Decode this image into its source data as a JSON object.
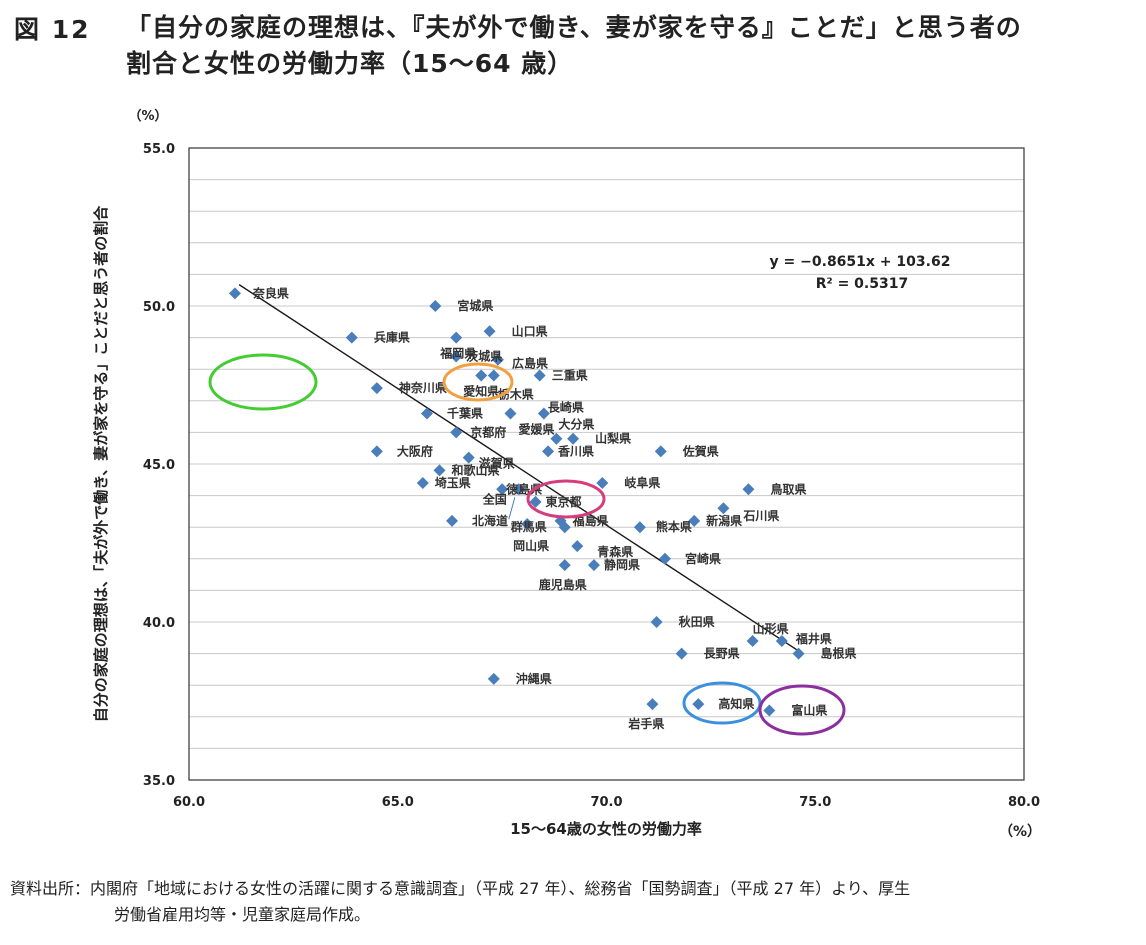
{
  "figure": {
    "number": "図 12",
    "title_line1": "「自分の家庭の理想は、『夫が外で働き、妻が家を守る』ことだ」と思う者の",
    "title_line2": "割合と女性の労働力率（15～64 歳）"
  },
  "source": {
    "label": "資料出所：",
    "line1": "内閣府「地域における女性の活躍に関する意識調査」（平成 27 年）、総務省「国勢調査」（平成 27 年）より、厚生",
    "line2": "労働省雇用均等・児童家庭局作成。"
  },
  "chart_data": {
    "type": "scatter",
    "xlabel": "15～64歳の女性の労働力率",
    "ylabel": "自分の家庭の理想は、「夫が外で働き、妻が家を守る」ことだと思う者の割合",
    "x_unit": "（%）",
    "y_unit": "（%）",
    "xlim": [
      60,
      80
    ],
    "ylim": [
      35,
      55
    ],
    "xticks": [
      "60.0",
      "65.0",
      "70.0",
      "75.0",
      "80.0"
    ],
    "yticks": [
      "35.0",
      "40.0",
      "45.0",
      "50.0",
      "55.0"
    ],
    "grid": "horizontal",
    "marker_color": "#4a7ebb",
    "trendline": {
      "equation": "y = −0.8651x + 103.62",
      "r2": "R² = 0.5317",
      "slope": -0.8651,
      "intercept": 103.62,
      "x_range": [
        61.2,
        74.6
      ]
    },
    "points": [
      {
        "name": "奈良県",
        "x": 61.1,
        "y": 50.4
      },
      {
        "name": "宮城県",
        "x": 65.9,
        "y": 50.0
      },
      {
        "name": "福岡県",
        "x": 66.4,
        "y": 49.0
      },
      {
        "name": "山口県",
        "x": 67.2,
        "y": 49.2
      },
      {
        "name": "兵庫県",
        "x": 63.9,
        "y": 49.0
      },
      {
        "name": "茨城県",
        "x": 66.4,
        "y": 48.4
      },
      {
        "name": "広島県",
        "x": 67.4,
        "y": 48.3
      },
      {
        "name": "愛知県",
        "x": 67.0,
        "y": 47.8
      },
      {
        "name": "栃木県",
        "x": 67.3,
        "y": 47.8
      },
      {
        "name": "三重県",
        "x": 68.4,
        "y": 47.8
      },
      {
        "name": "神奈川県",
        "x": 64.5,
        "y": 47.4
      },
      {
        "name": "長崎県",
        "x": 68.5,
        "y": 46.6
      },
      {
        "name": "千葉県",
        "x": 65.7,
        "y": 46.6
      },
      {
        "name": "愛媛県",
        "x": 67.7,
        "y": 46.6
      },
      {
        "name": "京都府",
        "x": 66.4,
        "y": 46.0
      },
      {
        "name": "大分県",
        "x": 68.8,
        "y": 45.8
      },
      {
        "name": "山梨県",
        "x": 69.2,
        "y": 45.8
      },
      {
        "name": "大阪府",
        "x": 64.5,
        "y": 45.4
      },
      {
        "name": "香川県",
        "x": 68.6,
        "y": 45.4
      },
      {
        "name": "佐賀県",
        "x": 71.3,
        "y": 45.4
      },
      {
        "name": "滋賀県",
        "x": 66.7,
        "y": 45.2
      },
      {
        "name": "和歌山県",
        "x": 66.0,
        "y": 44.8
      },
      {
        "name": "埼玉県",
        "x": 65.6,
        "y": 44.4
      },
      {
        "name": "岐阜県",
        "x": 69.9,
        "y": 44.4
      },
      {
        "name": "徳島県",
        "x": 67.5,
        "y": 44.2
      },
      {
        "name": "鳥取県",
        "x": 73.4,
        "y": 44.2
      },
      {
        "name": "全国",
        "x": 67.9,
        "y": 44.2
      },
      {
        "name": "東京都",
        "x": 68.3,
        "y": 43.8
      },
      {
        "name": "石川県",
        "x": 72.8,
        "y": 43.6
      },
      {
        "name": "北海道",
        "x": 66.3,
        "y": 43.2
      },
      {
        "name": "福島県",
        "x": 68.9,
        "y": 43.2
      },
      {
        "name": "新潟県",
        "x": 72.1,
        "y": 43.2
      },
      {
        "name": "熊本県",
        "x": 70.8,
        "y": 43.0
      },
      {
        "name": "岡山県",
        "x": 68.1,
        "y": 43.1
      },
      {
        "name": "群馬県",
        "x": 69.0,
        "y": 43.0
      },
      {
        "name": "青森県",
        "x": 69.3,
        "y": 42.4
      },
      {
        "name": "宮崎県",
        "x": 71.4,
        "y": 42.0
      },
      {
        "name": "静岡県",
        "x": 69.7,
        "y": 41.8
      },
      {
        "name": "鹿児島県",
        "x": 69.0,
        "y": 41.8
      },
      {
        "name": "秋田県",
        "x": 71.2,
        "y": 40.0
      },
      {
        "name": "山形県",
        "x": 73.5,
        "y": 39.4
      },
      {
        "name": "福井県",
        "x": 74.2,
        "y": 39.4
      },
      {
        "name": "長野県",
        "x": 71.8,
        "y": 39.0
      },
      {
        "name": "島根県",
        "x": 74.6,
        "y": 39.0
      },
      {
        "name": "沖縄県",
        "x": 67.3,
        "y": 38.2
      },
      {
        "name": "高知県",
        "x": 72.2,
        "y": 37.4
      },
      {
        "name": "岩手県",
        "x": 71.1,
        "y": 37.4
      },
      {
        "name": "富山県",
        "x": 73.9,
        "y": 37.2
      }
    ],
    "highlights": [
      {
        "name": "奈良県",
        "color": "#44cc33"
      },
      {
        "name": "愛知県",
        "color": "#f0a040"
      },
      {
        "name": "東京都",
        "color": "#d63d7c"
      },
      {
        "name": "高知県",
        "color": "#3b8fde"
      },
      {
        "name": "富山県",
        "color": "#8b2f9e"
      }
    ]
  }
}
